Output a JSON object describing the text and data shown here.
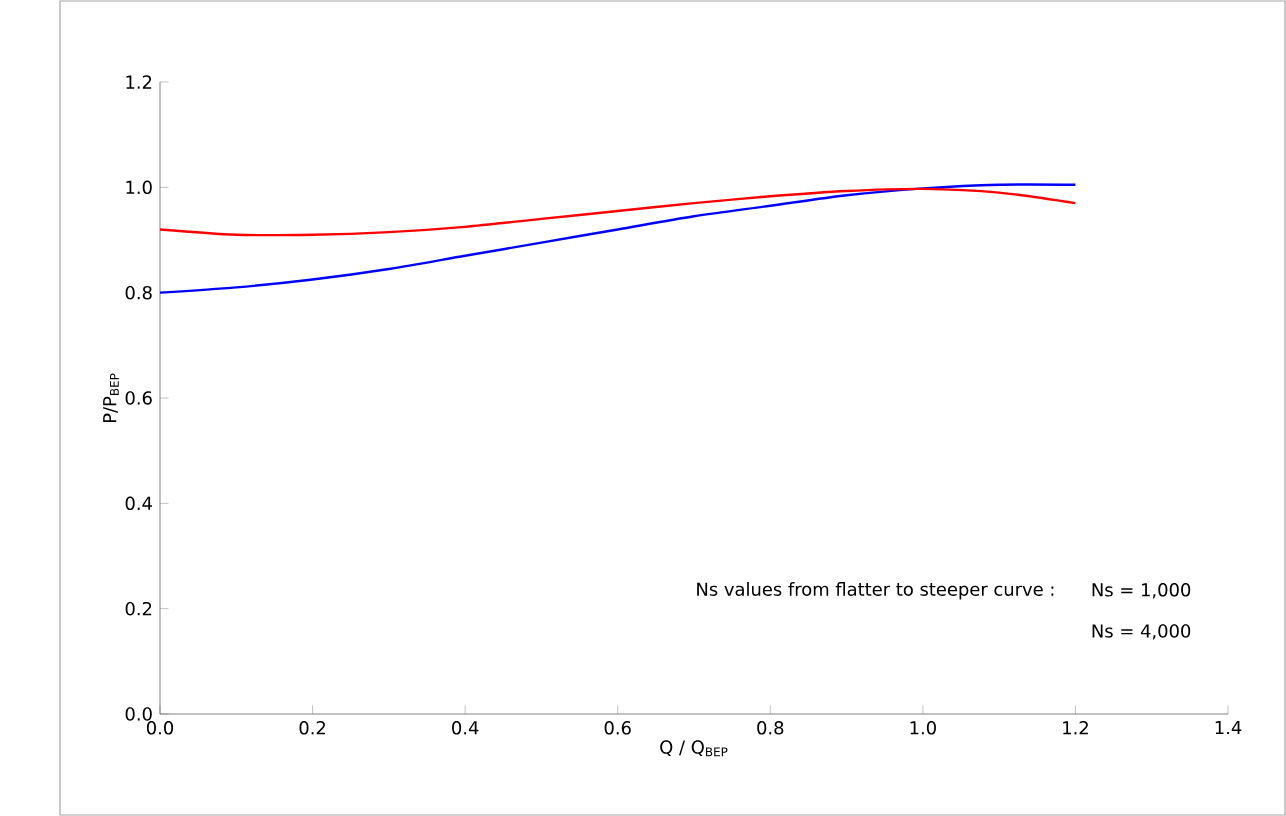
{
  "chart_data": {
    "type": "line",
    "xlabel": "Q / Q$_{BEP}$",
    "ylabel": "P/P$_{BEP}$",
    "x": [
      0.0,
      0.1,
      0.2,
      0.3,
      0.4,
      0.5,
      0.6,
      0.7,
      0.8,
      0.9,
      1.0,
      1.1,
      1.2
    ],
    "series": [
      {
        "color": "#0000ff",
        "values": [
          0.8,
          0.81,
          0.825,
          0.845,
          0.87,
          0.895,
          0.92,
          0.945,
          0.965,
          0.985,
          0.998,
          1.005,
          1.005
        ]
      },
      {
        "color": "#ff0000",
        "values": [
          0.92,
          0.91,
          0.91,
          0.915,
          0.925,
          0.94,
          0.955,
          0.97,
          0.983,
          0.993,
          0.997,
          0.99,
          0.97
        ]
      }
    ],
    "xlim": [
      0.0,
      1.4
    ],
    "xticks": [
      {
        "value": 0.0,
        "label": "0.0"
      },
      0.2,
      0.4,
      0.6,
      0.8,
      {
        "value": 1.0,
        "label": "1.0"
      },
      1.2,
      1.4
    ],
    "ylim": [
      0.0,
      1.2
    ],
    "yticks": [
      {
        "value": 0.0,
        "label": "0.0"
      },
      0.2,
      0.4,
      0.6,
      0.8,
      {
        "value": 1.0,
        "label": "1.0"
      },
      1.2
    ],
    "grid": false,
    "marker": "none",
    "line_style": "solid",
    "annotations": [
      "Ns values from flatter to steeper curve :",
      "Ns = 1,000",
      "Ns = 4,000"
    ]
  }
}
